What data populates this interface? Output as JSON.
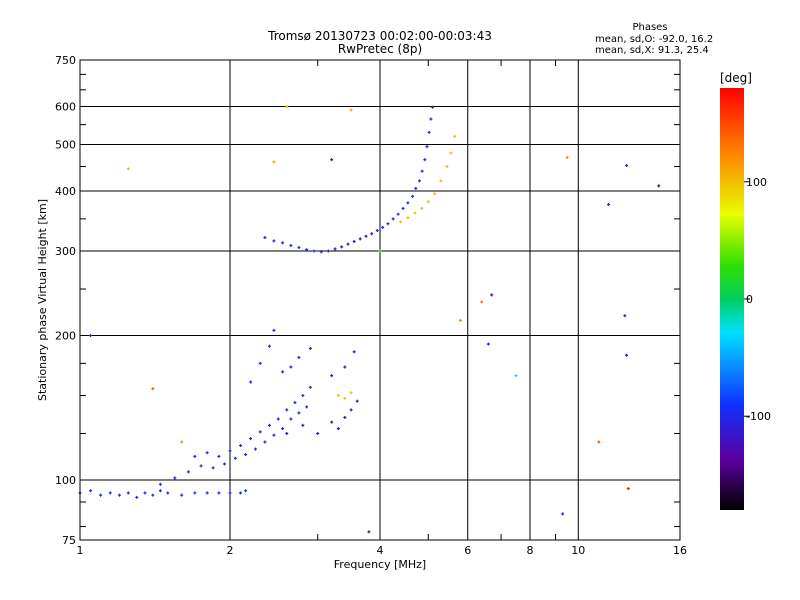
{
  "chart_data": {
    "type": "scatter",
    "title": "Tromsø 20130723 00:02:00-00:03:43",
    "subtitle": "RwPretec (8p)",
    "xlabel": "Frequency [MHz]",
    "ylabel": "Stationary phase Virtual Height [km]",
    "x_scale": "log",
    "y_scale": "log",
    "xlim": [
      1,
      16
    ],
    "ylim": [
      75,
      750
    ],
    "x_ticks": [
      1,
      2,
      4,
      6,
      8,
      10,
      16
    ],
    "y_ticks": [
      75,
      100,
      200,
      300,
      400,
      500,
      600,
      750
    ],
    "grid": true,
    "stats": {
      "heading": "Phases",
      "line_o": "mean, sd,O:  -92.0, 16.2",
      "line_x": "mean, sd,X:  91.3, 25.4"
    },
    "colorbar": {
      "label": "[deg]",
      "range": [
        -180,
        180
      ],
      "ticks": [
        100,
        0,
        -100
      ]
    },
    "series": [
      {
        "points": [
          [
            1.0,
            94,
            -95
          ],
          [
            1.05,
            95,
            -95
          ],
          [
            1.1,
            93,
            -95
          ],
          [
            1.15,
            94,
            -95
          ],
          [
            1.2,
            93,
            -95
          ],
          [
            1.25,
            94,
            -95
          ],
          [
            1.3,
            92,
            -95
          ],
          [
            1.35,
            94,
            -95
          ],
          [
            1.4,
            93,
            -95
          ],
          [
            1.45,
            95,
            -95
          ],
          [
            1.5,
            94,
            -95
          ],
          [
            1.6,
            93,
            -95
          ],
          [
            1.7,
            94,
            -95
          ],
          [
            1.8,
            94,
            -95
          ],
          [
            1.9,
            94,
            -95
          ],
          [
            2.0,
            94,
            -95
          ],
          [
            2.1,
            94,
            -95
          ],
          [
            2.15,
            95,
            -95
          ],
          [
            1.45,
            98,
            -100
          ],
          [
            1.55,
            101,
            -100
          ],
          [
            1.65,
            104,
            -100
          ],
          [
            1.75,
            107,
            -100
          ],
          [
            1.85,
            106,
            -100
          ],
          [
            1.95,
            108,
            -100
          ],
          [
            2.05,
            111,
            -100
          ],
          [
            2.15,
            113,
            -100
          ],
          [
            2.25,
            116,
            -100
          ],
          [
            2.35,
            120,
            -100
          ],
          [
            2.45,
            124,
            -100
          ],
          [
            2.55,
            128,
            -100
          ],
          [
            2.65,
            134,
            -100
          ],
          [
            2.75,
            138,
            -100
          ],
          [
            2.85,
            142,
            -100
          ],
          [
            1.7,
            112,
            -100
          ],
          [
            1.8,
            114,
            -100
          ],
          [
            1.9,
            112,
            -100
          ],
          [
            2.0,
            115,
            -100
          ],
          [
            2.1,
            118,
            -100
          ],
          [
            2.2,
            122,
            -100
          ],
          [
            2.3,
            126,
            -100
          ],
          [
            2.4,
            130,
            -100
          ],
          [
            2.5,
            134,
            -100
          ],
          [
            2.6,
            140,
            -100
          ],
          [
            2.7,
            145,
            -100
          ],
          [
            2.8,
            150,
            -100
          ],
          [
            2.9,
            156,
            -100
          ],
          [
            2.2,
            160,
            -100
          ],
          [
            2.3,
            175,
            -100
          ],
          [
            2.4,
            190,
            -100
          ],
          [
            2.45,
            205,
            -100
          ],
          [
            2.55,
            168,
            -100
          ],
          [
            2.65,
            172,
            -100
          ],
          [
            2.75,
            180,
            -100
          ],
          [
            2.9,
            188,
            -100
          ],
          [
            2.6,
            125,
            -110
          ],
          [
            2.8,
            130,
            -110
          ],
          [
            3.0,
            125,
            -110
          ],
          [
            3.2,
            132,
            -125
          ],
          [
            3.3,
            128,
            -125
          ],
          [
            3.4,
            135,
            -125
          ],
          [
            3.5,
            140,
            -125
          ],
          [
            3.6,
            146,
            -125
          ],
          [
            3.2,
            165,
            -120
          ],
          [
            3.4,
            172,
            -120
          ],
          [
            3.55,
            185,
            -120
          ],
          [
            2.35,
            320,
            -100
          ],
          [
            2.45,
            315,
            -100
          ],
          [
            2.55,
            312,
            -100
          ],
          [
            2.65,
            308,
            -100
          ],
          [
            2.75,
            305,
            -100
          ],
          [
            2.85,
            302,
            -100
          ],
          [
            2.95,
            300,
            -100
          ],
          [
            3.05,
            299,
            -120
          ],
          [
            3.15,
            300,
            -120
          ],
          [
            3.25,
            303,
            -120
          ],
          [
            3.35,
            306,
            -125
          ],
          [
            3.45,
            310,
            -125
          ],
          [
            3.55,
            314,
            -125
          ],
          [
            3.65,
            318,
            -125
          ],
          [
            3.75,
            322,
            -125
          ],
          [
            3.85,
            326,
            -125
          ],
          [
            3.95,
            331,
            -100
          ],
          [
            4.05,
            336,
            -100
          ],
          [
            4.15,
            342,
            -100
          ],
          [
            4.25,
            350,
            -100
          ],
          [
            4.35,
            358,
            -100
          ],
          [
            4.45,
            368,
            -100
          ],
          [
            4.55,
            378,
            -100
          ],
          [
            4.65,
            390,
            -100
          ],
          [
            4.72,
            405,
            -100
          ],
          [
            4.8,
            420,
            -100
          ],
          [
            4.86,
            440,
            -100
          ],
          [
            4.92,
            465,
            -100
          ],
          [
            4.97,
            495,
            -100
          ],
          [
            5.02,
            530,
            -100
          ],
          [
            5.06,
            565,
            -100
          ],
          [
            5.1,
            598,
            -100
          ],
          [
            4.4,
            345,
            100
          ],
          [
            4.55,
            352,
            100
          ],
          [
            4.7,
            360,
            100
          ],
          [
            4.85,
            368,
            100
          ],
          [
            5.0,
            380,
            100
          ],
          [
            5.15,
            395,
            100
          ],
          [
            5.3,
            420,
            100
          ],
          [
            5.45,
            450,
            100
          ],
          [
            5.55,
            480,
            100
          ],
          [
            5.65,
            520,
            100
          ],
          [
            3.3,
            150,
            100
          ],
          [
            3.4,
            148,
            100
          ],
          [
            3.5,
            152,
            100
          ],
          [
            1.05,
            200,
            -100
          ],
          [
            1.25,
            445,
            100
          ],
          [
            2.45,
            460,
            110
          ],
          [
            3.5,
            590,
            110
          ],
          [
            2.6,
            600,
            110
          ],
          [
            3.2,
            465,
            -130
          ],
          [
            6.4,
            235,
            130
          ],
          [
            6.7,
            243,
            -130
          ],
          [
            9.5,
            470,
            120
          ],
          [
            12.5,
            452,
            -110
          ],
          [
            12.4,
            220,
            -110
          ],
          [
            12.5,
            182,
            -130
          ],
          [
            14.5,
            410,
            -140
          ],
          [
            11.5,
            375,
            -100
          ],
          [
            7.5,
            165,
            -30
          ],
          [
            6.6,
            192,
            -120
          ],
          [
            4.0,
            300,
            20
          ],
          [
            5.8,
            215,
            120
          ],
          [
            1.4,
            155,
            140
          ],
          [
            1.6,
            120,
            120
          ],
          [
            3.8,
            78,
            -120
          ],
          [
            9.3,
            85,
            -100
          ],
          [
            11.0,
            120,
            150
          ],
          [
            12.6,
            96,
            170
          ]
        ]
      }
    ]
  }
}
